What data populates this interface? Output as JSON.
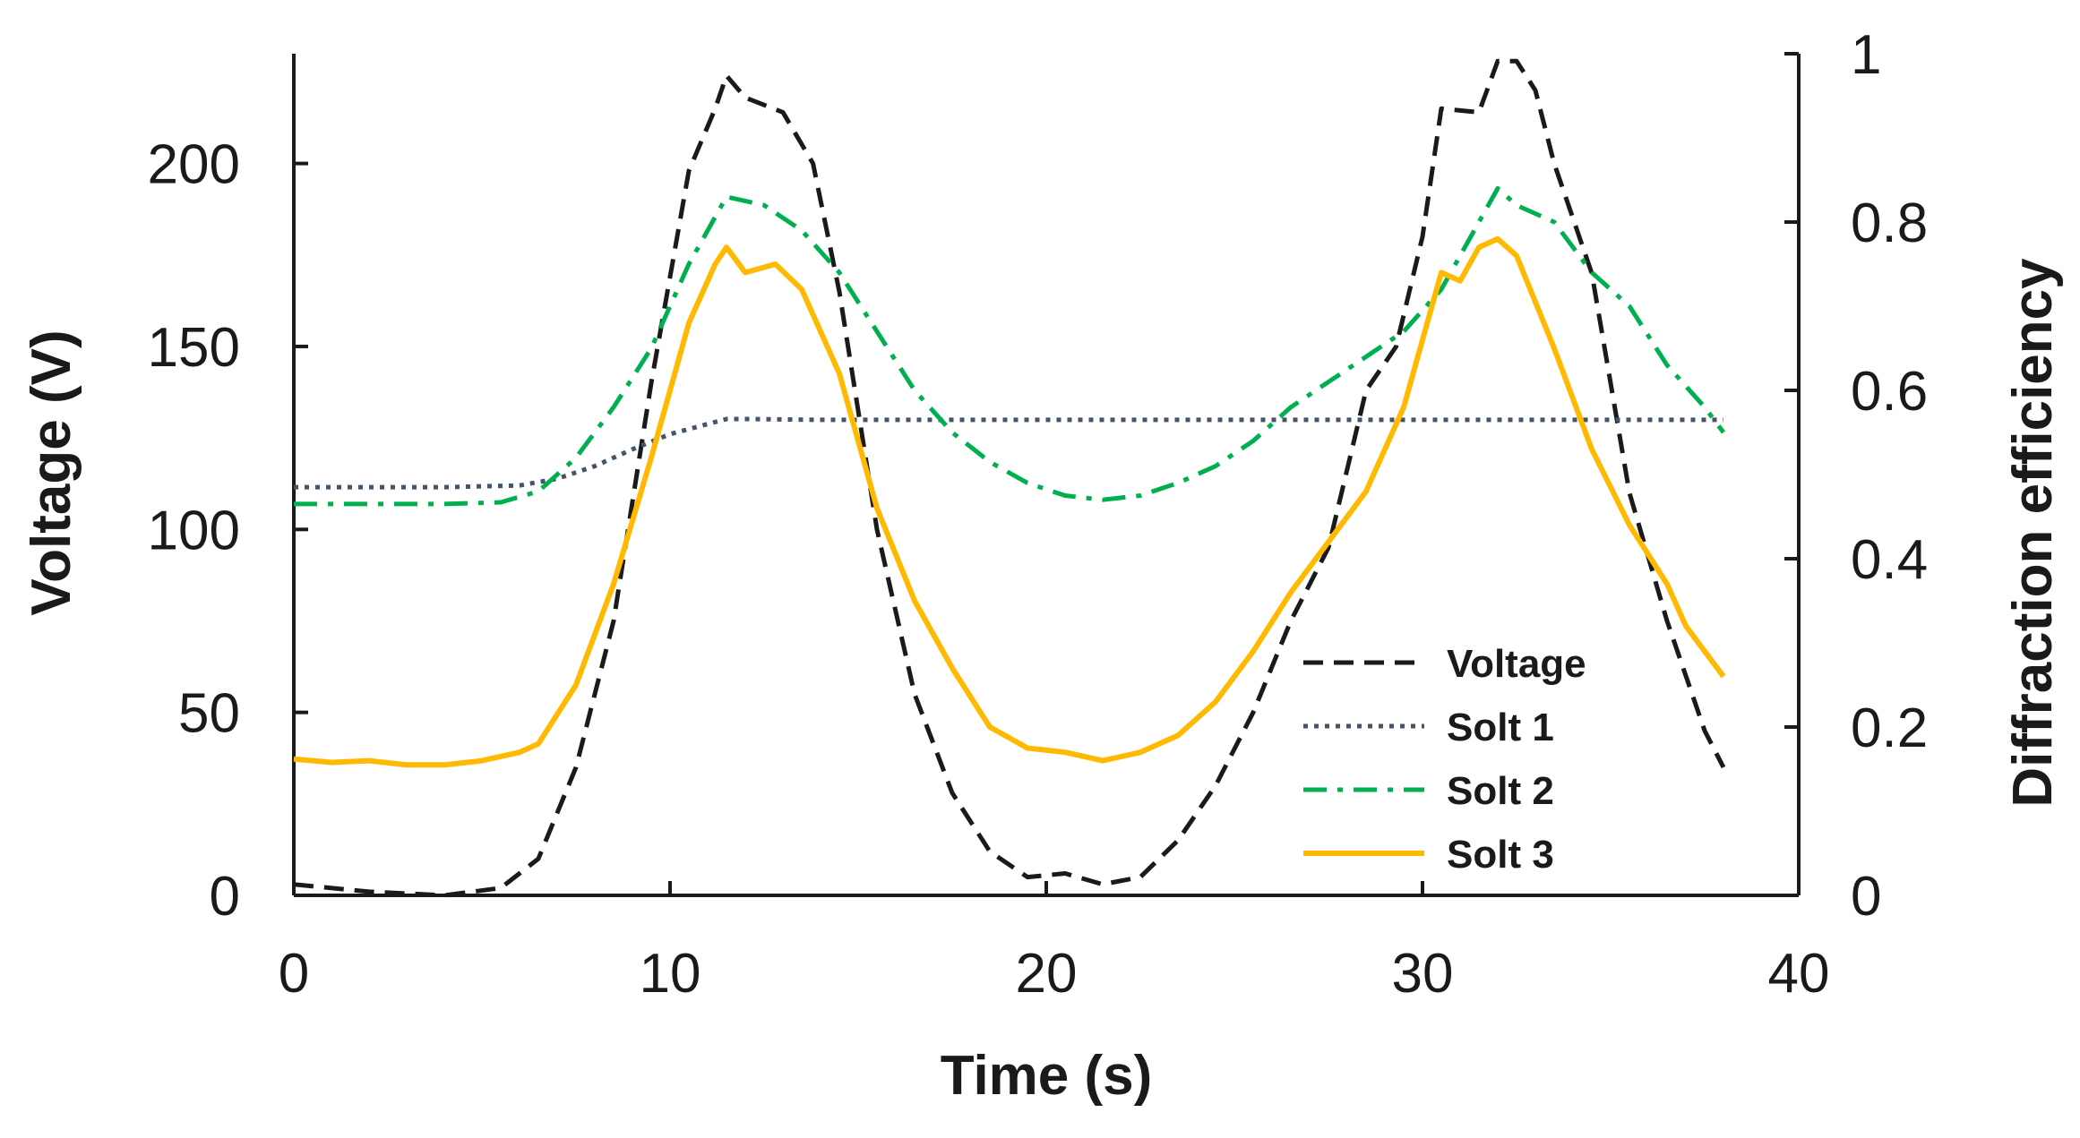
{
  "chart_data": {
    "type": "line",
    "xlabel": "Time (s)",
    "ylabel": "Voltage (V)",
    "y2label": "Diffraction efficiency",
    "xlim": [
      0,
      40
    ],
    "ylim": [
      0,
      230
    ],
    "y2lim": [
      0,
      1
    ],
    "x_ticks": [
      "0",
      "10",
      "20",
      "30",
      "40"
    ],
    "y_ticks": [
      "0",
      "50",
      "100",
      "150",
      "200"
    ],
    "y2_ticks": [
      "0",
      "0.2",
      "0.4",
      "0.6",
      "0.8",
      "1"
    ],
    "grid": false,
    "legend_position": "bottom-right",
    "series": [
      {
        "name": "Voltage",
        "axis": "left",
        "style": "dashed",
        "color": "#1a1a1a",
        "x": [
          0,
          2,
          4,
          5.5,
          6.5,
          7.5,
          8.5,
          9.5,
          10.5,
          11.2,
          11.5,
          12,
          13,
          13.8,
          14.5,
          15.5,
          16.5,
          17.5,
          18.5,
          19.5,
          20.5,
          21.5,
          22.5,
          23.5,
          24.5,
          25.5,
          26.5,
          27.5,
          28.5,
          29.3,
          30,
          30.5,
          31.5,
          32,
          32.5,
          33,
          33.5,
          34.5,
          35.5,
          36.5,
          37.5,
          38
        ],
        "y": [
          3,
          1,
          0,
          2,
          10,
          35,
          75,
          140,
          198,
          215,
          224,
          218,
          214,
          200,
          165,
          100,
          55,
          28,
          12,
          5,
          6,
          3,
          5,
          15,
          30,
          50,
          75,
          95,
          138,
          150,
          180,
          215,
          214,
          228,
          228,
          220,
          200,
          170,
          110,
          75,
          45,
          35
        ]
      },
      {
        "name": "Solt 1",
        "axis": "right",
        "style": "dotted",
        "color": "#44546a",
        "x": [
          0,
          2,
          4,
          6,
          7,
          8,
          9,
          10,
          11,
          11.5,
          12,
          14,
          16,
          18,
          20,
          22,
          24,
          26,
          28,
          30,
          32,
          34,
          36,
          38
        ],
        "y": [
          0.485,
          0.485,
          0.485,
          0.487,
          0.495,
          0.51,
          0.53,
          0.548,
          0.56,
          0.566,
          0.566,
          0.565,
          0.565,
          0.565,
          0.565,
          0.565,
          0.565,
          0.565,
          0.565,
          0.565,
          0.565,
          0.565,
          0.565,
          0.565
        ]
      },
      {
        "name": "Solt 2",
        "axis": "right",
        "style": "dash-dot",
        "color": "#00b050",
        "x": [
          0,
          2,
          4,
          5.5,
          6.5,
          7.5,
          8.5,
          9.5,
          10.5,
          11.5,
          12.5,
          13.5,
          14.5,
          15.5,
          16.5,
          17.5,
          18.5,
          19.5,
          20.5,
          21.5,
          22.5,
          23.5,
          24.5,
          25.5,
          26.5,
          27.5,
          28.5,
          29.5,
          30.5,
          31.5,
          32,
          32.5,
          33.5,
          34.5,
          35.5,
          36.5,
          37.5,
          38
        ],
        "y": [
          0.465,
          0.465,
          0.465,
          0.467,
          0.48,
          0.52,
          0.58,
          0.65,
          0.75,
          0.83,
          0.82,
          0.79,
          0.74,
          0.67,
          0.6,
          0.55,
          0.515,
          0.49,
          0.475,
          0.47,
          0.475,
          0.49,
          0.51,
          0.54,
          0.58,
          0.61,
          0.64,
          0.67,
          0.72,
          0.8,
          0.84,
          0.82,
          0.8,
          0.74,
          0.7,
          0.63,
          0.58,
          0.55
        ]
      },
      {
        "name": "Solt 3",
        "axis": "right",
        "style": "solid",
        "color": "#ffb900",
        "x": [
          0,
          1,
          2,
          3,
          4,
          5,
          6,
          6.5,
          7.5,
          8.5,
          9.5,
          10.5,
          11.2,
          11.5,
          12,
          12.8,
          13.5,
          14.5,
          15.5,
          16.5,
          17.5,
          18.5,
          19.5,
          20.5,
          21.5,
          22.5,
          23.5,
          24.5,
          25.5,
          26.5,
          27.5,
          28.5,
          29.5,
          30.5,
          31,
          31.5,
          32,
          32.5,
          33.5,
          34.5,
          35.5,
          36.5,
          37,
          37.5,
          38
        ],
        "y": [
          0.162,
          0.158,
          0.16,
          0.155,
          0.155,
          0.16,
          0.17,
          0.18,
          0.25,
          0.37,
          0.52,
          0.68,
          0.75,
          0.77,
          0.74,
          0.75,
          0.72,
          0.62,
          0.46,
          0.35,
          0.27,
          0.2,
          0.175,
          0.17,
          0.16,
          0.17,
          0.19,
          0.23,
          0.29,
          0.36,
          0.42,
          0.48,
          0.58,
          0.74,
          0.73,
          0.77,
          0.78,
          0.76,
          0.65,
          0.53,
          0.44,
          0.37,
          0.32,
          0.29,
          0.26
        ]
      }
    ]
  }
}
